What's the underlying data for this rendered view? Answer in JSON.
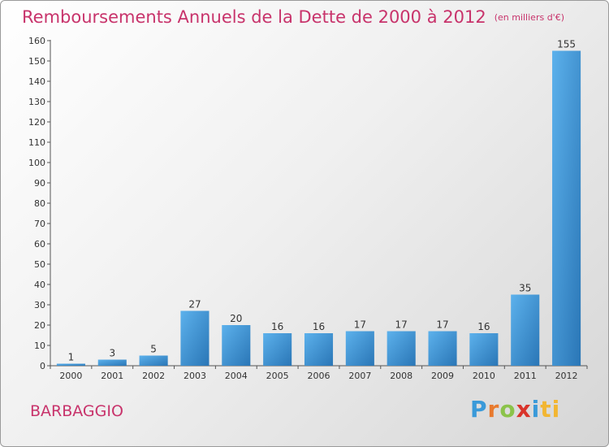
{
  "header": {
    "title": "Remboursements Annuels de la Dette de 2000 à 2012",
    "unit": "(en milliers d'€)"
  },
  "footer": {
    "commune": "BARBAGGIO",
    "logo": [
      "P",
      "r",
      "o",
      "x",
      "i",
      "ti"
    ]
  },
  "chart_data": {
    "type": "bar",
    "title": "Remboursements Annuels de la Dette de 2000 à 2012",
    "subtitle": "(en milliers d'€)",
    "xlabel": "",
    "ylabel": "",
    "categories": [
      "2000",
      "2001",
      "2002",
      "2003",
      "2004",
      "2005",
      "2006",
      "2007",
      "2008",
      "2009",
      "2010",
      "2011",
      "2012"
    ],
    "values": [
      1,
      3,
      5,
      27,
      20,
      16,
      16,
      17,
      17,
      17,
      16,
      35,
      155
    ],
    "data_labels": [
      "1",
      "3",
      "5",
      "27",
      "20",
      "16",
      "16",
      "17",
      "17",
      "17",
      "16",
      "35",
      "155"
    ],
    "ylim": [
      0,
      160
    ],
    "yticks": [
      0,
      10,
      20,
      30,
      40,
      50,
      60,
      70,
      80,
      90,
      100,
      110,
      120,
      130,
      140,
      150,
      160
    ],
    "grid": false,
    "colors": {
      "bar_light": "#5aaeea",
      "bar_dark": "#2b78b8",
      "title": "#c8336b"
    }
  }
}
